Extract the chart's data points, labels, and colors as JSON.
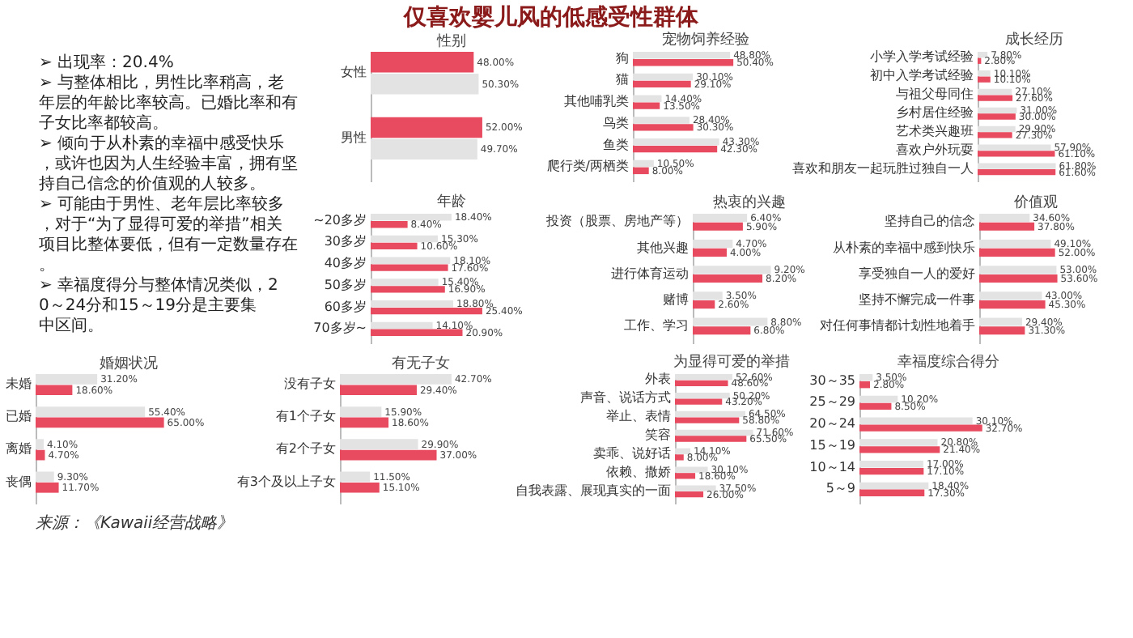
{
  "chart_data": [
    {
      "type": "other",
      "title": "仅喜欢婴儿风的低感受性群体",
      "annotations": [
        "➢ 出现率：20.4%",
        "➢ 与整体相比，男性比率稍高，老年层的年龄比率较高。已婚比率和有子女比率都较高。",
        "➢ 倾向于从朴素的幸福中感受快乐，或许也因为人生经验丰富，拥有坚持自己信念的价值观的人较多。",
        "➢ 可能由于男性、老年层比率较多，对于“为了显得可爱的举措”相关项目比整体要低，但有一定数量存在。",
        "➢ 幸福度得分与整体情况类似，20～24分和15～19分是主要集中区间。",
        "来源：《Kawaii经营战略》"
      ]
    },
    {
      "type": "bar",
      "orientation": "horizontal",
      "title": "性别",
      "tick_labels": "y",
      "categories": [
        "女性",
        "男性"
      ],
      "series": [
        {
          "color": "#e84a5f",
          "values": [
            48.0,
            52.0
          ],
          "value_labels": [
            "48.00%",
            "52.00%"
          ]
        },
        {
          "color": "#e3e3e3",
          "values": [
            50.3,
            49.7
          ],
          "value_labels": [
            "50.30%",
            "49.70%"
          ]
        }
      ]
    },
    {
      "type": "bar",
      "orientation": "horizontal",
      "title": "宠物饲养经验",
      "tick_labels": "y",
      "categories": [
        "狗",
        "猫",
        "其他哺乳类",
        "鸟类",
        "鱼类",
        "爬行类/两栖类"
      ],
      "series": [
        {
          "color": "#e3e3e3",
          "values": [
            48.8,
            30.1,
            14.4,
            28.4,
            43.3,
            10.5
          ],
          "value_labels": [
            "48.80%",
            "30.10%",
            "14.40%",
            "28.40%",
            "43.30%",
            "10.50%"
          ]
        },
        {
          "color": "#e84a5f",
          "values": [
            50.4,
            29.1,
            13.5,
            30.3,
            42.3,
            8.0
          ],
          "value_labels": [
            "50.40%",
            "29.10%",
            "13.50%",
            "30.30%",
            "42.30%",
            "8.00%"
          ]
        }
      ]
    },
    {
      "type": "bar",
      "orientation": "horizontal",
      "title": "成长经历",
      "tick_labels": "y",
      "categories": [
        "小学入学考试经验",
        "初中入学考试经验",
        "与祖父母同住",
        "乡村居住经验",
        "艺术类兴趣班",
        "喜欢户外玩耍",
        "喜欢和朋友一起玩胜过独自一人"
      ],
      "series": [
        {
          "color": "#e3e3e3",
          "values": [
            7.8,
            10.1,
            27.1,
            31.0,
            29.9,
            57.9,
            61.8
          ],
          "value_labels": [
            "7.80%",
            "10.10%",
            "27.10%",
            "31.00%",
            "29.90%",
            "57.90%",
            "61.80%"
          ]
        },
        {
          "color": "#e84a5f",
          "values": [
            2.8,
            10.1,
            27.6,
            30.0,
            27.3,
            61.1,
            61.6
          ],
          "value_labels": [
            "2.80%",
            "10.10%",
            "27.60%",
            "30.00%",
            "27.30%",
            "61.10%",
            "61.60%"
          ]
        }
      ]
    },
    {
      "type": "bar",
      "orientation": "horizontal",
      "title": "年龄",
      "tick_labels": "y",
      "categories": [
        "~20多岁",
        "30多岁",
        "40多岁",
        "50多岁",
        "60多岁",
        "70多岁~"
      ],
      "series": [
        {
          "color": "#e3e3e3",
          "values": [
            18.4,
            15.3,
            18.1,
            15.4,
            18.8,
            14.1
          ],
          "value_labels": [
            "18.40%",
            "15.30%",
            "18.10%",
            "15.40%",
            "18.80%",
            "14.10%"
          ]
        },
        {
          "color": "#e84a5f",
          "values": [
            8.4,
            10.6,
            17.6,
            16.9,
            25.4,
            20.9
          ],
          "value_labels": [
            "8.40%",
            "10.60%",
            "17.60%",
            "16.90%",
            "25.40%",
            "20.90%"
          ]
        }
      ]
    },
    {
      "type": "bar",
      "orientation": "horizontal",
      "title": "热衷的兴趣",
      "tick_labels": "y",
      "categories": [
        "投资（股票、房地产等）",
        "其他兴趣",
        "进行体育运动",
        "赌博",
        "工作、学习"
      ],
      "series": [
        {
          "color": "#e3e3e3",
          "values": [
            6.4,
            4.7,
            9.2,
            3.5,
            8.8
          ],
          "value_labels": [
            "6.40%",
            "4.70%",
            "9.20%",
            "3.50%",
            "8.80%"
          ]
        },
        {
          "color": "#e84a5f",
          "values": [
            5.9,
            4.0,
            8.2,
            2.6,
            6.8
          ],
          "value_labels": [
            "5.90%",
            "4.00%",
            "8.20%",
            "2.60%",
            "6.80%"
          ]
        }
      ]
    },
    {
      "type": "bar",
      "orientation": "horizontal",
      "title": "价值观",
      "tick_labels": "y",
      "categories": [
        "坚持自己的信念",
        "从朴素的幸福中感到快乐",
        "享受独自一人的爱好",
        "坚持不懈完成一件事",
        "对任何事情都计划性地着手"
      ],
      "series": [
        {
          "color": "#e3e3e3",
          "values": [
            34.6,
            49.1,
            53.0,
            43.0,
            29.4
          ],
          "value_labels": [
            "34.60%",
            "49.10%",
            "53.00%",
            "43.00%",
            "29.40%"
          ]
        },
        {
          "color": "#e84a5f",
          "values": [
            37.8,
            52.0,
            53.6,
            45.3,
            31.3
          ],
          "value_labels": [
            "37.80%",
            "52.00%",
            "53.60%",
            "45.30%",
            "31.30%"
          ]
        }
      ]
    },
    {
      "type": "bar",
      "orientation": "horizontal",
      "title": "婚姻状况",
      "tick_labels": "y",
      "categories": [
        "未婚",
        "已婚",
        "离婚",
        "丧偶"
      ],
      "series": [
        {
          "color": "#e3e3e3",
          "values": [
            31.2,
            55.4,
            4.1,
            9.3
          ],
          "value_labels": [
            "31.20%",
            "55.40%",
            "4.10%",
            "9.30%"
          ]
        },
        {
          "color": "#e84a5f",
          "values": [
            18.6,
            65.0,
            4.7,
            11.7
          ],
          "value_labels": [
            "18.60%",
            "65.00%",
            "4.70%",
            "11.70%"
          ]
        }
      ]
    },
    {
      "type": "bar",
      "orientation": "horizontal",
      "title": "有无子女",
      "tick_labels": "y",
      "categories": [
        "没有子女",
        "有1个子女",
        "有2个子女",
        "有3个及以上子女"
      ],
      "series": [
        {
          "color": "#e3e3e3",
          "values": [
            42.7,
            15.9,
            29.9,
            11.5
          ],
          "value_labels": [
            "42.70%",
            "15.90%",
            "29.90%",
            "11.50%"
          ]
        },
        {
          "color": "#e84a5f",
          "values": [
            29.4,
            18.6,
            37.0,
            15.1
          ],
          "value_labels": [
            "29.40%",
            "18.60%",
            "37.00%",
            "15.10%"
          ]
        }
      ]
    },
    {
      "type": "bar",
      "orientation": "horizontal",
      "title": "为显得可爱的举措",
      "tick_labels": "y",
      "categories": [
        "外表",
        "声音、说话方式",
        "举止、表情",
        "笑容",
        "卖乖、说好话",
        "依赖、撒娇",
        "自我表露、展现真实的一面"
      ],
      "series": [
        {
          "color": "#e3e3e3",
          "values": [
            52.6,
            50.2,
            64.5,
            71.6,
            14.1,
            30.1,
            37.5
          ],
          "value_labels": [
            "52.60%",
            "50.20%",
            "64.50%",
            "71.60%",
            "14.10%",
            "30.10%",
            "37.50%"
          ]
        },
        {
          "color": "#e84a5f",
          "values": [
            48.6,
            43.2,
            58.8,
            65.5,
            8.0,
            18.6,
            26.0
          ],
          "value_labels": [
            "48.60%",
            "43.20%",
            "58.80%",
            "65.50%",
            "8.00%",
            "18.60%",
            "26.00%"
          ]
        }
      ]
    },
    {
      "type": "bar",
      "orientation": "horizontal",
      "title": "幸福度综合得分",
      "tick_labels": "y",
      "categories": [
        "30～35",
        "25～29",
        "20～24",
        "15～19",
        "10～14",
        "5～9"
      ],
      "series": [
        {
          "color": "#e3e3e3",
          "values": [
            3.5,
            10.2,
            30.1,
            20.8,
            17.0,
            18.4
          ],
          "value_labels": [
            "3.50%",
            "10.20%",
            "30.10%",
            "20.80%",
            "17.00%",
            "18.40%"
          ]
        },
        {
          "color": "#e84a5f",
          "values": [
            2.8,
            8.5,
            32.7,
            21.4,
            17.1,
            17.3
          ],
          "value_labels": [
            "2.80%",
            "8.50%",
            "32.70%",
            "21.40%",
            "17.10%",
            "17.30%"
          ]
        }
      ]
    }
  ]
}
